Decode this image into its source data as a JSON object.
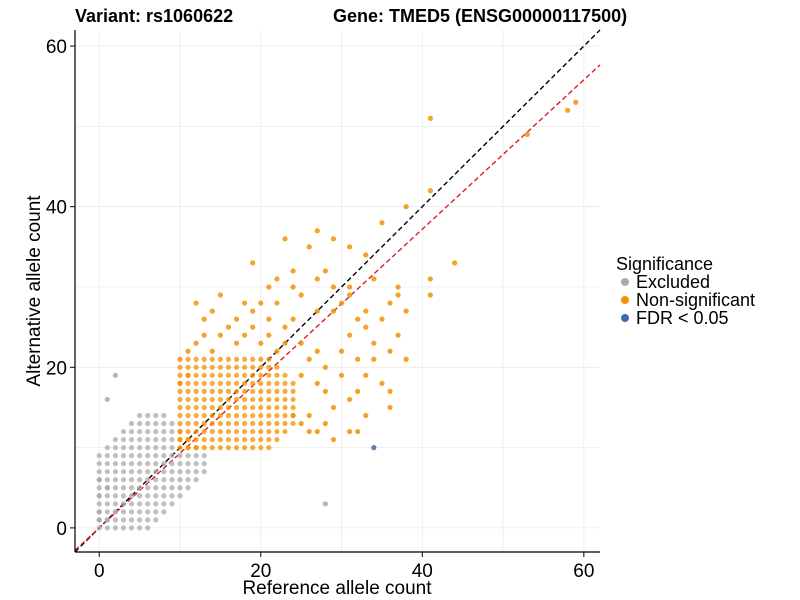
{
  "chart_data": {
    "type": "scatter",
    "title_left": "Variant: rs1060622",
    "title_right": "Gene: TMED5 (ENSG00000117500)",
    "xlabel": "Reference allele count",
    "ylabel": "Alternative allele count",
    "xlim": [
      -3,
      62
    ],
    "ylim": [
      -3,
      62
    ],
    "xticks": [
      0,
      20,
      40,
      60
    ],
    "yticks": [
      0,
      20,
      40,
      60
    ],
    "grid": true,
    "legend": {
      "title": "Significance",
      "position": "right",
      "entries": [
        {
          "label": "Excluded",
          "color": "#aaaaaa"
        },
        {
          "label": "Non-significant",
          "color": "#f39200"
        },
        {
          "label": "FDR < 0.05",
          "color": "#3c6fa8"
        }
      ]
    },
    "reference_lines": [
      {
        "name": "identity",
        "slope": 1,
        "intercept": 0,
        "color": "#000000",
        "style": "dashed"
      },
      {
        "name": "fit",
        "slope": 0.93,
        "intercept": 0,
        "color": "#e41a1c",
        "style": "dashed"
      }
    ],
    "series": [
      {
        "name": "Non-significant",
        "color": "#f39200",
        "points": [
          [
            41,
            51
          ],
          [
            59,
            53
          ],
          [
            58,
            52
          ],
          [
            53,
            49
          ],
          [
            41,
            42
          ],
          [
            38,
            40
          ],
          [
            35,
            38
          ],
          [
            44,
            33
          ],
          [
            41,
            31
          ],
          [
            41,
            29
          ],
          [
            27,
            37
          ],
          [
            29,
            36
          ],
          [
            23,
            36
          ],
          [
            31,
            35
          ],
          [
            26,
            35
          ],
          [
            19,
            33
          ],
          [
            33,
            34
          ],
          [
            24,
            32
          ],
          [
            28,
            32
          ],
          [
            22,
            31
          ],
          [
            27,
            31
          ],
          [
            21,
            30
          ],
          [
            31,
            30
          ],
          [
            34,
            31
          ],
          [
            37,
            30
          ],
          [
            24,
            30
          ],
          [
            29,
            30
          ],
          [
            31,
            29
          ],
          [
            36,
            28
          ],
          [
            38,
            27
          ],
          [
            15,
            29
          ],
          [
            18,
            28
          ],
          [
            12,
            28
          ],
          [
            14,
            27
          ],
          [
            20,
            28
          ],
          [
            22,
            28
          ],
          [
            25,
            29
          ],
          [
            30,
            28
          ],
          [
            33,
            27
          ],
          [
            35,
            26
          ],
          [
            13,
            26
          ],
          [
            17,
            26
          ],
          [
            19,
            27
          ],
          [
            21,
            26
          ],
          [
            24,
            26
          ],
          [
            27,
            27
          ],
          [
            29,
            27
          ],
          [
            32,
            26
          ],
          [
            37,
            24
          ],
          [
            36,
            22
          ],
          [
            33,
            25
          ],
          [
            31,
            24
          ],
          [
            34,
            23
          ],
          [
            34,
            21
          ],
          [
            30,
            22
          ],
          [
            32,
            21
          ],
          [
            28,
            20
          ],
          [
            30,
            19
          ],
          [
            33,
            19
          ],
          [
            35,
            18
          ],
          [
            32,
            17
          ],
          [
            36,
            17
          ],
          [
            25,
            19
          ],
          [
            27,
            18
          ],
          [
            28,
            17
          ],
          [
            31,
            16
          ],
          [
            29,
            15
          ],
          [
            33,
            14
          ],
          [
            32,
            12
          ],
          [
            31,
            12
          ],
          [
            26,
            14
          ],
          [
            24,
            14
          ],
          [
            25,
            13
          ],
          [
            26,
            12
          ],
          [
            27,
            12
          ],
          [
            28,
            13
          ],
          [
            29,
            11
          ],
          [
            36,
            15
          ],
          [
            38,
            21
          ],
          [
            37,
            29
          ],
          [
            22,
            22
          ],
          [
            20,
            23
          ],
          [
            18,
            24
          ],
          [
            16,
            25
          ],
          [
            23,
            25
          ],
          [
            25,
            23
          ],
          [
            26,
            21
          ],
          [
            27,
            22
          ],
          [
            23,
            23
          ],
          [
            21,
            24
          ],
          [
            19,
            25
          ],
          [
            17,
            23
          ],
          [
            15,
            24
          ],
          [
            14,
            22
          ],
          [
            13,
            24
          ],
          [
            11,
            22
          ],
          [
            12,
            23
          ],
          [
            10,
            21
          ],
          [
            11,
            19
          ],
          [
            10,
            18
          ]
        ]
      },
      {
        "name": "Excluded",
        "color": "#aaaaaa",
        "points": [
          [
            2,
            19
          ],
          [
            1,
            16
          ],
          [
            28,
            3
          ],
          [
            0,
            1
          ],
          [
            0,
            2
          ],
          [
            1,
            1
          ],
          [
            2,
            2
          ],
          [
            0,
            4
          ],
          [
            1,
            5
          ],
          [
            0,
            6
          ]
        ]
      },
      {
        "name": "FDR < 0.05",
        "color": "#3c6fa8",
        "points": [
          [
            34,
            10
          ]
        ]
      }
    ]
  }
}
